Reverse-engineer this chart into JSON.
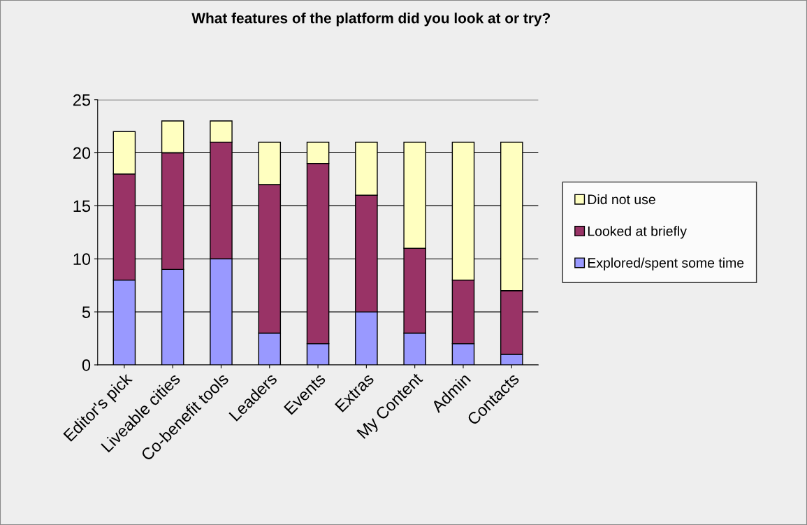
{
  "chart_data": {
    "type": "bar",
    "title": "What features of the platform did you look at or try?",
    "categories": [
      "Editor's pick",
      "Liveable cities",
      "Co-benefit tools",
      "Leaders",
      "Events",
      "Extras",
      "My Content",
      "Admin",
      "Contacts"
    ],
    "stacked": true,
    "series": [
      {
        "name": "Explored/spent some time",
        "color": "#9999ff",
        "values": [
          8,
          9,
          10,
          3,
          2,
          5,
          3,
          2,
          1
        ]
      },
      {
        "name": "Looked at briefly",
        "color": "#993366",
        "values": [
          10,
          11,
          11,
          14,
          17,
          11,
          8,
          6,
          6
        ]
      },
      {
        "name": "Did not use",
        "color": "#ffffc0",
        "values": [
          4,
          3,
          2,
          4,
          2,
          5,
          10,
          13,
          14
        ]
      }
    ],
    "ylim": [
      0,
      25
    ],
    "yticks": [
      0,
      5,
      10,
      15,
      20,
      25
    ],
    "grid": "y",
    "legend": "right"
  }
}
